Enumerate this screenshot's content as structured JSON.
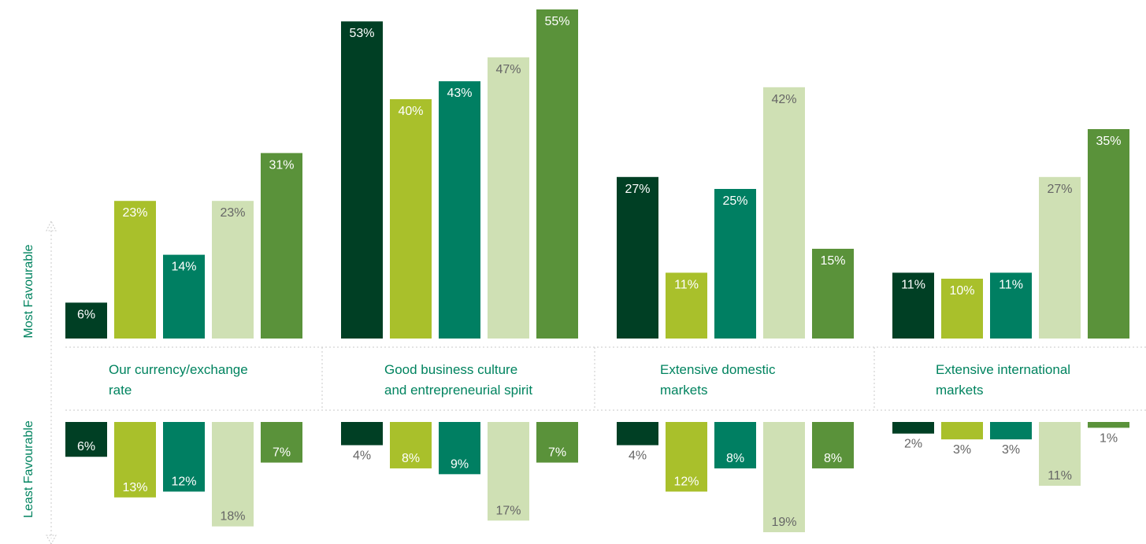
{
  "chart_data": {
    "type": "bar",
    "title": "",
    "axis_top_label": "Most Favourable",
    "axis_bottom_label": "Least Favourable",
    "categories": [
      "Our currency/exchange rate",
      "Good business culture and entrepreneurial spirit",
      "Extensive domestic markets",
      "Extensive international markets"
    ],
    "category_label_lines": [
      [
        "Our currency/exchange",
        "rate"
      ],
      [
        "Good business culture",
        "and entrepreneurial spirit"
      ],
      [
        "Extensive domestic",
        "markets"
      ],
      [
        "Extensive international",
        "markets"
      ]
    ],
    "series_colors": [
      "#003f24",
      "#a9c02b",
      "#007f62",
      "#cfe0b4",
      "#5a923a"
    ],
    "label_colors": [
      "#ffffff",
      "#ffffff",
      "#ffffff",
      "#666666",
      "#ffffff"
    ],
    "most_favourable": [
      [
        6,
        23,
        14,
        23,
        31
      ],
      [
        53,
        40,
        43,
        47,
        55
      ],
      [
        27,
        11,
        25,
        42,
        15
      ],
      [
        11,
        10,
        11,
        27,
        35
      ]
    ],
    "least_favourable": [
      [
        6,
        13,
        12,
        18,
        7
      ],
      [
        4,
        8,
        9,
        17,
        7
      ],
      [
        4,
        12,
        8,
        19,
        8
      ],
      [
        2,
        3,
        3,
        11,
        1
      ]
    ],
    "value_suffix": "%",
    "ylim_top": [
      0,
      55
    ],
    "ylim_bottom": [
      0,
      19
    ]
  }
}
